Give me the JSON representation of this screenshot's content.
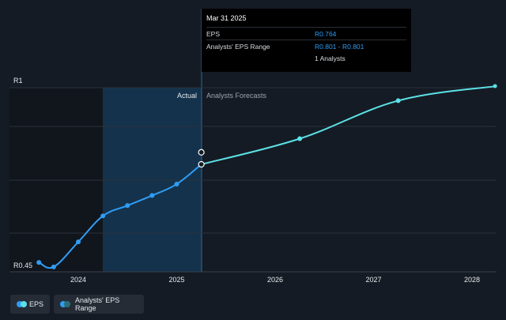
{
  "chart_data": {
    "type": "line",
    "y_axis": {
      "unit": "R",
      "tick_labels": [
        "R1",
        "R0.45"
      ],
      "ylim": [
        0.45,
        1.0
      ]
    },
    "x_axis": {
      "tick_labels": [
        "2024",
        "2025",
        "2026",
        "2027",
        "2028"
      ],
      "xlim": [
        2023.5,
        2028.25
      ]
    },
    "region_labels": {
      "actual": "Actual",
      "forecast": "Analysts Forecasts"
    },
    "series": [
      {
        "name": "EPS",
        "color": "#2f9df4",
        "points": [
          {
            "x": 2023.6,
            "y": 0.462
          },
          {
            "x": 2023.75,
            "y": 0.448
          },
          {
            "x": 2024.0,
            "y": 0.525
          },
          {
            "x": 2024.25,
            "y": 0.605
          },
          {
            "x": 2024.5,
            "y": 0.637
          },
          {
            "x": 2024.75,
            "y": 0.668
          },
          {
            "x": 2025.0,
            "y": 0.703
          },
          {
            "x": 2025.25,
            "y": 0.764
          }
        ]
      },
      {
        "name": "EPS forecast",
        "color": "#5ce1e6",
        "points": [
          {
            "x": 2025.25,
            "y": 0.764
          },
          {
            "x": 2026.25,
            "y": 0.843
          },
          {
            "x": 2027.25,
            "y": 0.96
          },
          {
            "x": 2028.25,
            "y": 1.005
          }
        ]
      }
    ],
    "range_marker": {
      "x": 2025.25,
      "y": 0.801
    },
    "grid": true
  },
  "tooltip": {
    "date": "Mar 31 2025",
    "rows": [
      {
        "label": "EPS",
        "value": "R0.764"
      },
      {
        "label": "Analysts' EPS Range",
        "value": "R0.801 - R0.801"
      },
      {
        "label": "",
        "value": "1 Analysts"
      }
    ]
  },
  "legend": {
    "eps_label": "EPS",
    "range_label": "Analysts' EPS Range",
    "eps_colors": [
      "#2f9df4",
      "#5ce1e6"
    ],
    "range_colors": [
      "#2f9df4",
      "#2a6f75"
    ]
  }
}
